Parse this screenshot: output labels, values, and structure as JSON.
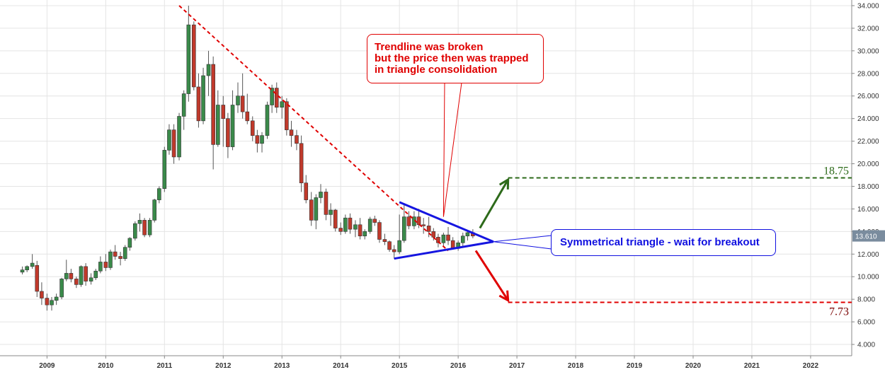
{
  "chart_data": {
    "type": "candlestick",
    "y_axis": {
      "side": "right",
      "ylim": [
        3.0,
        34.5
      ],
      "ticks": [
        "4.000",
        "6.000",
        "8.000",
        "10.000",
        "12.000",
        "14.000",
        "16.000",
        "18.000",
        "20.000",
        "22.000",
        "24.000",
        "26.000",
        "28.000",
        "30.000",
        "32.000",
        "34.000"
      ]
    },
    "x_axis": {
      "tick_labels": [
        "2009",
        "2010",
        "2011",
        "2012",
        "2013",
        "2014",
        "2015",
        "2016",
        "2017",
        "2018",
        "2019",
        "2020",
        "2021",
        "2022"
      ],
      "xlim": [
        2008.2,
        2022.7
      ]
    },
    "grid": true,
    "last_price_label": "13.610",
    "last_price": 13.61,
    "candles": [
      {
        "t": 2008.58,
        "o": 10.4,
        "h": 10.9,
        "l": 10.2,
        "c": 10.6
      },
      {
        "t": 2008.66,
        "o": 10.6,
        "h": 11.0,
        "l": 10.4,
        "c": 10.9
      },
      {
        "t": 2008.75,
        "o": 10.9,
        "h": 12.0,
        "l": 10.7,
        "c": 11.2
      },
      {
        "t": 2008.83,
        "o": 11.0,
        "h": 11.4,
        "l": 8.2,
        "c": 8.7
      },
      {
        "t": 2008.91,
        "o": 8.7,
        "h": 9.5,
        "l": 7.5,
        "c": 8.1
      },
      {
        "t": 2009.0,
        "o": 8.1,
        "h": 8.5,
        "l": 7.0,
        "c": 7.5
      },
      {
        "t": 2009.08,
        "o": 7.5,
        "h": 8.2,
        "l": 7.0,
        "c": 7.9
      },
      {
        "t": 2009.16,
        "o": 7.9,
        "h": 8.5,
        "l": 7.5,
        "c": 8.2
      },
      {
        "t": 2009.25,
        "o": 8.2,
        "h": 9.9,
        "l": 8.0,
        "c": 9.8
      },
      {
        "t": 2009.33,
        "o": 9.8,
        "h": 11.5,
        "l": 9.6,
        "c": 10.3
      },
      {
        "t": 2009.41,
        "o": 10.3,
        "h": 10.7,
        "l": 9.5,
        "c": 9.8
      },
      {
        "t": 2009.5,
        "o": 9.8,
        "h": 10.0,
        "l": 9.0,
        "c": 9.3
      },
      {
        "t": 2009.58,
        "o": 9.3,
        "h": 11.0,
        "l": 9.1,
        "c": 10.9
      },
      {
        "t": 2009.66,
        "o": 10.9,
        "h": 11.2,
        "l": 9.2,
        "c": 9.6
      },
      {
        "t": 2009.75,
        "o": 9.6,
        "h": 10.3,
        "l": 9.3,
        "c": 9.9
      },
      {
        "t": 2009.83,
        "o": 9.9,
        "h": 10.7,
        "l": 9.7,
        "c": 10.5
      },
      {
        "t": 2009.91,
        "o": 10.5,
        "h": 11.8,
        "l": 10.3,
        "c": 11.3
      },
      {
        "t": 2010.0,
        "o": 11.3,
        "h": 12.0,
        "l": 10.5,
        "c": 10.8
      },
      {
        "t": 2010.08,
        "o": 10.8,
        "h": 12.4,
        "l": 10.6,
        "c": 12.2
      },
      {
        "t": 2010.16,
        "o": 12.2,
        "h": 12.8,
        "l": 11.5,
        "c": 11.8
      },
      {
        "t": 2010.25,
        "o": 11.8,
        "h": 12.2,
        "l": 11.0,
        "c": 11.6
      },
      {
        "t": 2010.33,
        "o": 11.6,
        "h": 12.8,
        "l": 11.4,
        "c": 12.6
      },
      {
        "t": 2010.41,
        "o": 12.6,
        "h": 13.5,
        "l": 12.3,
        "c": 13.4
      },
      {
        "t": 2010.5,
        "o": 13.4,
        "h": 14.9,
        "l": 13.2,
        "c": 14.7
      },
      {
        "t": 2010.58,
        "o": 14.7,
        "h": 15.6,
        "l": 14.0,
        "c": 15.0
      },
      {
        "t": 2010.66,
        "o": 15.0,
        "h": 15.2,
        "l": 13.5,
        "c": 13.7
      },
      {
        "t": 2010.75,
        "o": 13.7,
        "h": 15.2,
        "l": 13.5,
        "c": 15.0
      },
      {
        "t": 2010.83,
        "o": 15.0,
        "h": 16.9,
        "l": 14.8,
        "c": 16.8
      },
      {
        "t": 2010.91,
        "o": 16.8,
        "h": 18.0,
        "l": 16.5,
        "c": 17.8
      },
      {
        "t": 2011.0,
        "o": 17.8,
        "h": 21.5,
        "l": 17.5,
        "c": 21.2
      },
      {
        "t": 2011.08,
        "o": 21.2,
        "h": 23.5,
        "l": 20.8,
        "c": 23.0
      },
      {
        "t": 2011.16,
        "o": 23.0,
        "h": 23.5,
        "l": 20.0,
        "c": 20.6
      },
      {
        "t": 2011.25,
        "o": 20.6,
        "h": 24.5,
        "l": 20.3,
        "c": 24.2
      },
      {
        "t": 2011.33,
        "o": 24.2,
        "h": 26.5,
        "l": 23.0,
        "c": 26.2
      },
      {
        "t": 2011.41,
        "o": 26.2,
        "h": 34.0,
        "l": 25.5,
        "c": 32.3
      },
      {
        "t": 2011.5,
        "o": 32.3,
        "h": 32.6,
        "l": 26.5,
        "c": 26.8
      },
      {
        "t": 2011.58,
        "o": 26.8,
        "h": 28.0,
        "l": 23.2,
        "c": 23.8
      },
      {
        "t": 2011.66,
        "o": 23.8,
        "h": 28.5,
        "l": 23.5,
        "c": 27.8
      },
      {
        "t": 2011.75,
        "o": 27.8,
        "h": 30.0,
        "l": 26.0,
        "c": 28.8
      },
      {
        "t": 2011.83,
        "o": 28.8,
        "h": 29.5,
        "l": 19.5,
        "c": 21.7
      },
      {
        "t": 2011.91,
        "o": 21.7,
        "h": 26.5,
        "l": 21.5,
        "c": 25.2
      },
      {
        "t": 2012.0,
        "o": 25.2,
        "h": 26.0,
        "l": 21.5,
        "c": 24.0
      },
      {
        "t": 2012.08,
        "o": 24.0,
        "h": 24.5,
        "l": 20.5,
        "c": 21.5
      },
      {
        "t": 2012.16,
        "o": 21.5,
        "h": 26.5,
        "l": 21.2,
        "c": 25.2
      },
      {
        "t": 2012.25,
        "o": 25.2,
        "h": 27.2,
        "l": 24.5,
        "c": 26.0
      },
      {
        "t": 2012.33,
        "o": 26.0,
        "h": 28.0,
        "l": 24.0,
        "c": 24.6
      },
      {
        "t": 2012.41,
        "o": 24.6,
        "h": 26.2,
        "l": 23.5,
        "c": 23.8
      },
      {
        "t": 2012.5,
        "o": 23.8,
        "h": 24.2,
        "l": 22.0,
        "c": 22.5
      },
      {
        "t": 2012.58,
        "o": 22.5,
        "h": 23.0,
        "l": 21.0,
        "c": 21.8
      },
      {
        "t": 2012.66,
        "o": 21.8,
        "h": 22.8,
        "l": 21.0,
        "c": 22.5
      },
      {
        "t": 2012.75,
        "o": 22.5,
        "h": 25.5,
        "l": 22.2,
        "c": 25.2
      },
      {
        "t": 2012.83,
        "o": 25.2,
        "h": 27.0,
        "l": 24.5,
        "c": 26.7
      },
      {
        "t": 2012.91,
        "o": 26.7,
        "h": 27.2,
        "l": 24.5,
        "c": 25.0
      },
      {
        "t": 2013.0,
        "o": 25.0,
        "h": 26.0,
        "l": 24.0,
        "c": 25.5
      },
      {
        "t": 2013.08,
        "o": 25.5,
        "h": 25.8,
        "l": 22.5,
        "c": 23.0
      },
      {
        "t": 2013.16,
        "o": 23.0,
        "h": 23.8,
        "l": 21.5,
        "c": 22.5
      },
      {
        "t": 2013.25,
        "o": 22.5,
        "h": 23.0,
        "l": 21.2,
        "c": 21.8
      },
      {
        "t": 2013.33,
        "o": 21.8,
        "h": 22.5,
        "l": 17.5,
        "c": 18.3
      },
      {
        "t": 2013.41,
        "o": 18.3,
        "h": 19.0,
        "l": 16.5,
        "c": 16.8
      },
      {
        "t": 2013.5,
        "o": 16.8,
        "h": 17.5,
        "l": 14.5,
        "c": 15.0
      },
      {
        "t": 2013.58,
        "o": 15.0,
        "h": 17.3,
        "l": 14.2,
        "c": 17.0
      },
      {
        "t": 2013.66,
        "o": 17.0,
        "h": 18.2,
        "l": 16.5,
        "c": 17.5
      },
      {
        "t": 2013.75,
        "o": 17.5,
        "h": 17.8,
        "l": 15.0,
        "c": 15.5
      },
      {
        "t": 2013.83,
        "o": 15.5,
        "h": 16.5,
        "l": 14.5,
        "c": 15.9
      },
      {
        "t": 2013.91,
        "o": 15.9,
        "h": 16.0,
        "l": 14.0,
        "c": 14.3
      },
      {
        "t": 2014.0,
        "o": 14.3,
        "h": 14.8,
        "l": 13.7,
        "c": 14.0
      },
      {
        "t": 2014.08,
        "o": 14.0,
        "h": 15.5,
        "l": 13.8,
        "c": 15.2
      },
      {
        "t": 2014.16,
        "o": 15.2,
        "h": 15.6,
        "l": 13.8,
        "c": 14.2
      },
      {
        "t": 2014.25,
        "o": 14.2,
        "h": 15.0,
        "l": 13.5,
        "c": 14.6
      },
      {
        "t": 2014.33,
        "o": 14.6,
        "h": 15.2,
        "l": 13.3,
        "c": 13.6
      },
      {
        "t": 2014.41,
        "o": 13.6,
        "h": 14.2,
        "l": 13.3,
        "c": 14.0
      },
      {
        "t": 2014.5,
        "o": 14.0,
        "h": 15.3,
        "l": 13.8,
        "c": 15.1
      },
      {
        "t": 2014.58,
        "o": 15.1,
        "h": 15.4,
        "l": 14.5,
        "c": 14.8
      },
      {
        "t": 2014.66,
        "o": 14.8,
        "h": 15.0,
        "l": 13.0,
        "c": 13.3
      },
      {
        "t": 2014.75,
        "o": 13.3,
        "h": 13.8,
        "l": 12.8,
        "c": 13.1
      },
      {
        "t": 2014.83,
        "o": 13.1,
        "h": 13.2,
        "l": 12.2,
        "c": 12.4
      },
      {
        "t": 2014.91,
        "o": 12.4,
        "h": 12.8,
        "l": 11.6,
        "c": 12.2
      },
      {
        "t": 2015.0,
        "o": 12.2,
        "h": 15.5,
        "l": 12.0,
        "c": 13.2
      },
      {
        "t": 2015.08,
        "o": 13.2,
        "h": 16.5,
        "l": 13.0,
        "c": 15.3
      },
      {
        "t": 2015.16,
        "o": 15.3,
        "h": 15.8,
        "l": 14.2,
        "c": 14.5
      },
      {
        "t": 2015.25,
        "o": 14.5,
        "h": 15.8,
        "l": 14.2,
        "c": 15.3
      },
      {
        "t": 2015.33,
        "o": 15.3,
        "h": 16.0,
        "l": 14.3,
        "c": 14.6
      },
      {
        "t": 2015.41,
        "o": 14.6,
        "h": 15.2,
        "l": 13.8,
        "c": 14.5
      },
      {
        "t": 2015.5,
        "o": 14.5,
        "h": 15.3,
        "l": 13.5,
        "c": 14.0
      },
      {
        "t": 2015.58,
        "o": 14.0,
        "h": 14.3,
        "l": 13.2,
        "c": 13.5
      },
      {
        "t": 2015.66,
        "o": 13.5,
        "h": 13.8,
        "l": 12.6,
        "c": 13.0
      },
      {
        "t": 2015.75,
        "o": 13.0,
        "h": 13.9,
        "l": 12.6,
        "c": 13.7
      },
      {
        "t": 2015.83,
        "o": 13.7,
        "h": 14.4,
        "l": 12.8,
        "c": 13.2
      },
      {
        "t": 2015.91,
        "o": 13.2,
        "h": 13.5,
        "l": 12.4,
        "c": 12.5
      },
      {
        "t": 2016.0,
        "o": 12.5,
        "h": 13.2,
        "l": 12.3,
        "c": 13.0
      },
      {
        "t": 2016.08,
        "o": 13.0,
        "h": 13.9,
        "l": 12.7,
        "c": 13.6
      },
      {
        "t": 2016.16,
        "o": 13.6,
        "h": 14.0,
        "l": 13.2,
        "c": 13.9
      },
      {
        "t": 2016.25,
        "o": 13.9,
        "h": 14.2,
        "l": 13.4,
        "c": 13.6
      }
    ],
    "downtrend_line": {
      "x": [
        2011.25,
        2015.83
      ],
      "y": [
        34.0,
        12.3
      ]
    },
    "triangle": {
      "upper": {
        "x": [
          2015.0,
          2016.6
        ],
        "y": [
          16.6,
          13.1
        ]
      },
      "lower": {
        "x": [
          2014.91,
          2016.6
        ],
        "y": [
          11.6,
          13.1
        ]
      }
    },
    "target_up": {
      "value": 18.75,
      "label": "18.75",
      "x_start": 2016.85
    },
    "target_down": {
      "value": 7.73,
      "label": "7.73",
      "x_start": 2016.85
    },
    "arrow_up": {
      "x": [
        2016.37,
        2016.85
      ],
      "y": [
        14.3,
        18.6
      ]
    },
    "arrow_down": {
      "x": [
        2016.3,
        2016.85
      ],
      "y": [
        12.3,
        7.9
      ]
    },
    "annotations": {
      "trendline_callout": {
        "lines": [
          "Trendline was broken",
          "but the price then was trapped",
          "in triangle consolidation"
        ],
        "color": "#e00000",
        "pointer_tip": {
          "x": 2015.75,
          "y": 15.3
        }
      },
      "triangle_callout": {
        "text": "Symmetrical triangle - wait for breakout",
        "color": "#1010e0",
        "pointer_tip": {
          "x": 2016.6,
          "y": 13.1
        }
      }
    },
    "colors": {
      "bull": "#3a8a4a",
      "bear": "#c0392b",
      "trend": "#e00000",
      "triangle": "#1515e0",
      "target_up": "#2d6a1a",
      "target_down": "#e00000",
      "target_down_label": "#7a0000",
      "price_tag": "#7a8c9e",
      "grid": "#e4e4e4"
    }
  }
}
